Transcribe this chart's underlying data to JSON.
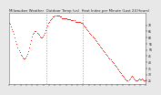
{
  "title": "Milwaukee Weather  Outdoor Temp (vs)  Heat Index per Minute (Last 24 Hours)",
  "title_fontsize": 2.8,
  "bg_color": "#e8e8e8",
  "plot_bg_color": "#ffffff",
  "line_color": "#dd0000",
  "vline_color": "#999999",
  "vline_positions": [
    0.27,
    0.54
  ],
  "ytick_labels": [
    "70",
    "65",
    "60",
    "55",
    "50",
    "45",
    "40",
    "35",
    "30",
    "25"
  ],
  "ytick_values": [
    70,
    65,
    60,
    55,
    50,
    45,
    40,
    35,
    30,
    25
  ],
  "ylim": [
    22,
    80
  ],
  "xlim": [
    0,
    143
  ],
  "curve": [
    72,
    71,
    69,
    67,
    65,
    63,
    60,
    57,
    55,
    52,
    50,
    48,
    46,
    45,
    44,
    43,
    43,
    44,
    45,
    47,
    49,
    52,
    55,
    58,
    61,
    63,
    64,
    65,
    65,
    64,
    63,
    62,
    61,
    60,
    60,
    61,
    62,
    64,
    66,
    68,
    70,
    72,
    73,
    74,
    75,
    76,
    77,
    77,
    78,
    78,
    78,
    78,
    78,
    77,
    77,
    76,
    76,
    76,
    76,
    76,
    76,
    75,
    75,
    75,
    75,
    74,
    74,
    74,
    74,
    73,
    73,
    73,
    73,
    73,
    73,
    72,
    72,
    71,
    70,
    69,
    68,
    67,
    66,
    65,
    64,
    63,
    62,
    61,
    60,
    59,
    58,
    57,
    56,
    55,
    54,
    53,
    52,
    51,
    50,
    49,
    48,
    47,
    46,
    45,
    44,
    43,
    42,
    41,
    40,
    39,
    38,
    37,
    36,
    35,
    34,
    33,
    32,
    31,
    30,
    29,
    28,
    27,
    26,
    25,
    25,
    26,
    27,
    28,
    29,
    28,
    27,
    26,
    25,
    25,
    25,
    26,
    27,
    26,
    26,
    27,
    26,
    25,
    25,
    25
  ],
  "marker_size": 1.2,
  "line_width": 0.3
}
